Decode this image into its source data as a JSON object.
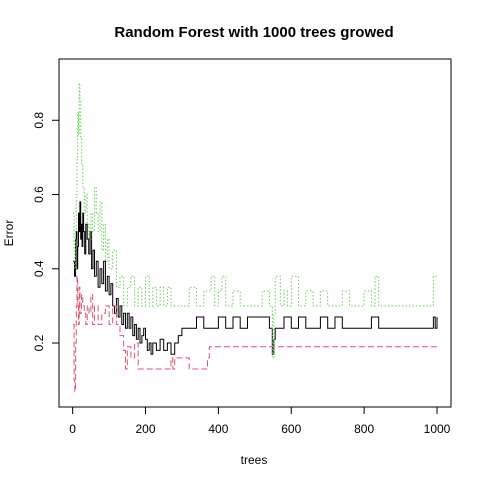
{
  "chart_data": {
    "type": "line",
    "title": "Random Forest with 1000 trees growed",
    "xlabel": "trees",
    "ylabel": "Error",
    "xlim": [
      1,
      1000
    ],
    "ylim": [
      0.06,
      0.93
    ],
    "xticks": [
      0,
      200,
      400,
      600,
      800,
      1000
    ],
    "yticks": [
      0.2,
      0.4,
      0.6,
      0.8
    ],
    "grid": false,
    "legend": "none",
    "series": [
      {
        "color": "#000000",
        "dash": "solid",
        "points": [
          [
            1,
            0.42
          ],
          [
            5,
            0.38
          ],
          [
            8,
            0.48
          ],
          [
            10,
            0.5
          ],
          [
            12,
            0.4
          ],
          [
            14,
            0.46
          ],
          [
            16,
            0.55
          ],
          [
            18,
            0.5
          ],
          [
            20,
            0.58
          ],
          [
            22,
            0.48
          ],
          [
            24,
            0.52
          ],
          [
            26,
            0.46
          ],
          [
            28,
            0.55
          ],
          [
            30,
            0.5
          ],
          [
            33,
            0.44
          ],
          [
            36,
            0.52
          ],
          [
            40,
            0.48
          ],
          [
            44,
            0.44
          ],
          [
            48,
            0.5
          ],
          [
            52,
            0.4
          ],
          [
            56,
            0.45
          ],
          [
            60,
            0.38
          ],
          [
            65,
            0.42
          ],
          [
            70,
            0.35
          ],
          [
            75,
            0.4
          ],
          [
            80,
            0.36
          ],
          [
            85,
            0.42
          ],
          [
            90,
            0.34
          ],
          [
            95,
            0.38
          ],
          [
            100,
            0.33
          ],
          [
            105,
            0.36
          ],
          [
            110,
            0.3
          ],
          [
            115,
            0.28
          ],
          [
            120,
            0.32
          ],
          [
            125,
            0.27
          ],
          [
            130,
            0.3
          ],
          [
            135,
            0.25
          ],
          [
            140,
            0.28
          ],
          [
            145,
            0.24
          ],
          [
            150,
            0.28
          ],
          [
            155,
            0.24
          ],
          [
            160,
            0.27
          ],
          [
            165,
            0.22
          ],
          [
            170,
            0.25
          ],
          [
            175,
            0.21
          ],
          [
            180,
            0.24
          ],
          [
            185,
            0.2
          ],
          [
            190,
            0.22
          ],
          [
            195,
            0.24
          ],
          [
            200,
            0.21
          ],
          [
            205,
            0.18
          ],
          [
            210,
            0.2
          ],
          [
            215,
            0.17
          ],
          [
            220,
            0.2
          ],
          [
            230,
            0.18
          ],
          [
            240,
            0.21
          ],
          [
            250,
            0.18
          ],
          [
            260,
            0.2
          ],
          [
            270,
            0.17
          ],
          [
            280,
            0.2
          ],
          [
            290,
            0.22
          ],
          [
            300,
            0.24
          ],
          [
            320,
            0.24
          ],
          [
            340,
            0.27
          ],
          [
            360,
            0.24
          ],
          [
            380,
            0.24
          ],
          [
            400,
            0.27
          ],
          [
            420,
            0.24
          ],
          [
            440,
            0.27
          ],
          [
            460,
            0.24
          ],
          [
            480,
            0.27
          ],
          [
            500,
            0.27
          ],
          [
            520,
            0.27
          ],
          [
            540,
            0.24
          ],
          [
            548,
            0.17
          ],
          [
            552,
            0.21
          ],
          [
            556,
            0.24
          ],
          [
            580,
            0.27
          ],
          [
            600,
            0.24
          ],
          [
            620,
            0.27
          ],
          [
            640,
            0.24
          ],
          [
            660,
            0.24
          ],
          [
            680,
            0.27
          ],
          [
            700,
            0.24
          ],
          [
            720,
            0.27
          ],
          [
            740,
            0.24
          ],
          [
            760,
            0.24
          ],
          [
            780,
            0.24
          ],
          [
            800,
            0.24
          ],
          [
            820,
            0.27
          ],
          [
            840,
            0.24
          ],
          [
            860,
            0.24
          ],
          [
            880,
            0.24
          ],
          [
            900,
            0.24
          ],
          [
            920,
            0.24
          ],
          [
            940,
            0.24
          ],
          [
            960,
            0.24
          ],
          [
            980,
            0.24
          ],
          [
            990,
            0.27
          ],
          [
            995,
            0.24
          ],
          [
            1000,
            0.27
          ]
        ]
      },
      {
        "color": "#DF536B",
        "dash": "6,3",
        "points": [
          [
            1,
            0.25
          ],
          [
            4,
            0.1
          ],
          [
            6,
            0.07
          ],
          [
            8,
            0.2
          ],
          [
            10,
            0.3
          ],
          [
            12,
            0.38
          ],
          [
            14,
            0.3
          ],
          [
            16,
            0.25
          ],
          [
            18,
            0.35
          ],
          [
            20,
            0.28
          ],
          [
            24,
            0.33
          ],
          [
            28,
            0.3
          ],
          [
            32,
            0.28
          ],
          [
            36,
            0.25
          ],
          [
            40,
            0.3
          ],
          [
            45,
            0.28
          ],
          [
            50,
            0.33
          ],
          [
            55,
            0.25
          ],
          [
            60,
            0.3
          ],
          [
            70,
            0.25
          ],
          [
            80,
            0.28
          ],
          [
            90,
            0.3
          ],
          [
            100,
            0.25
          ],
          [
            110,
            0.3
          ],
          [
            120,
            0.25
          ],
          [
            130,
            0.22
          ],
          [
            140,
            0.18
          ],
          [
            145,
            0.13
          ],
          [
            150,
            0.19
          ],
          [
            160,
            0.16
          ],
          [
            170,
            0.2
          ],
          [
            180,
            0.13
          ],
          [
            190,
            0.13
          ],
          [
            200,
            0.13
          ],
          [
            220,
            0.13
          ],
          [
            240,
            0.13
          ],
          [
            260,
            0.13
          ],
          [
            270,
            0.16
          ],
          [
            275,
            0.13
          ],
          [
            280,
            0.16
          ],
          [
            300,
            0.16
          ],
          [
            320,
            0.13
          ],
          [
            340,
            0.13
          ],
          [
            360,
            0.13
          ],
          [
            370,
            0.16
          ],
          [
            375,
            0.19
          ],
          [
            400,
            0.19
          ],
          [
            500,
            0.19
          ],
          [
            600,
            0.19
          ],
          [
            700,
            0.19
          ],
          [
            800,
            0.19
          ],
          [
            900,
            0.19
          ],
          [
            1000,
            0.19
          ]
        ]
      },
      {
        "color": "#61D04F",
        "dash": "1.5,2",
        "points": [
          [
            1,
            0.55
          ],
          [
            4,
            0.45
          ],
          [
            6,
            0.4
          ],
          [
            8,
            0.5
          ],
          [
            10,
            0.6
          ],
          [
            12,
            0.7
          ],
          [
            14,
            0.82
          ],
          [
            16,
            0.76
          ],
          [
            18,
            0.9
          ],
          [
            20,
            0.85
          ],
          [
            22,
            0.75
          ],
          [
            25,
            0.68
          ],
          [
            28,
            0.62
          ],
          [
            32,
            0.55
          ],
          [
            36,
            0.6
          ],
          [
            40,
            0.52
          ],
          [
            45,
            0.48
          ],
          [
            50,
            0.55
          ],
          [
            55,
            0.5
          ],
          [
            60,
            0.62
          ],
          [
            65,
            0.55
          ],
          [
            70,
            0.5
          ],
          [
            75,
            0.58
          ],
          [
            80,
            0.45
          ],
          [
            85,
            0.52
          ],
          [
            90,
            0.42
          ],
          [
            95,
            0.48
          ],
          [
            100,
            0.4
          ],
          [
            110,
            0.45
          ],
          [
            120,
            0.35
          ],
          [
            130,
            0.38
          ],
          [
            140,
            0.3
          ],
          [
            150,
            0.35
          ],
          [
            160,
            0.38
          ],
          [
            170,
            0.3
          ],
          [
            180,
            0.35
          ],
          [
            190,
            0.3
          ],
          [
            200,
            0.38
          ],
          [
            210,
            0.3
          ],
          [
            220,
            0.35
          ],
          [
            230,
            0.3
          ],
          [
            240,
            0.35
          ],
          [
            250,
            0.3
          ],
          [
            260,
            0.35
          ],
          [
            270,
            0.3
          ],
          [
            280,
            0.3
          ],
          [
            290,
            0.3
          ],
          [
            300,
            0.3
          ],
          [
            310,
            0.3
          ],
          [
            320,
            0.35
          ],
          [
            340,
            0.3
          ],
          [
            360,
            0.34
          ],
          [
            380,
            0.38
          ],
          [
            390,
            0.3
          ],
          [
            400,
            0.34
          ],
          [
            410,
            0.38
          ],
          [
            420,
            0.3
          ],
          [
            440,
            0.34
          ],
          [
            460,
            0.3
          ],
          [
            480,
            0.3
          ],
          [
            500,
            0.3
          ],
          [
            520,
            0.34
          ],
          [
            540,
            0.3
          ],
          [
            548,
            0.16
          ],
          [
            552,
            0.28
          ],
          [
            556,
            0.38
          ],
          [
            570,
            0.3
          ],
          [
            580,
            0.34
          ],
          [
            590,
            0.3
          ],
          [
            600,
            0.38
          ],
          [
            620,
            0.3
          ],
          [
            640,
            0.34
          ],
          [
            660,
            0.3
          ],
          [
            680,
            0.34
          ],
          [
            700,
            0.3
          ],
          [
            720,
            0.3
          ],
          [
            740,
            0.34
          ],
          [
            760,
            0.3
          ],
          [
            780,
            0.3
          ],
          [
            800,
            0.34
          ],
          [
            820,
            0.3
          ],
          [
            830,
            0.38
          ],
          [
            840,
            0.3
          ],
          [
            860,
            0.3
          ],
          [
            880,
            0.3
          ],
          [
            900,
            0.3
          ],
          [
            920,
            0.3
          ],
          [
            940,
            0.3
          ],
          [
            960,
            0.3
          ],
          [
            980,
            0.3
          ],
          [
            990,
            0.38
          ],
          [
            1000,
            0.38
          ]
        ]
      }
    ]
  }
}
